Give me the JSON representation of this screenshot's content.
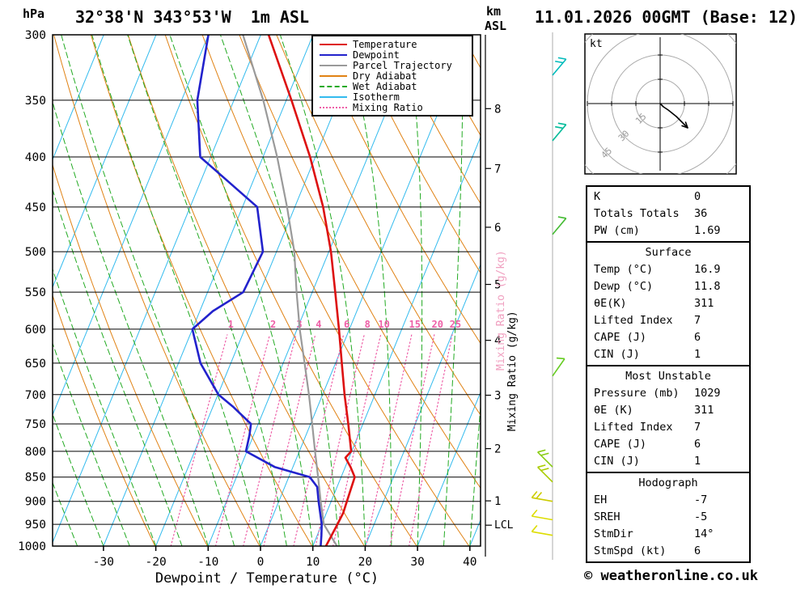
{
  "header": {
    "station": "32°38'N 343°53'W  1m ASL",
    "datetime": "11.01.2026 00GMT (Base: 12)"
  },
  "chart_data": {
    "type": "skewt_log_p_sounding",
    "axes": {
      "pressure_unit": "hPa",
      "altitude_unit": "km",
      "altitude_unit2": "ASL",
      "xlabel": "Dewpoint / Temperature (°C)",
      "mixing_label": "Mixing Ratio (g/kg)",
      "lcl_label": "LCL",
      "pressure_ticks_hpa": [
        300,
        350,
        400,
        450,
        500,
        550,
        600,
        650,
        700,
        750,
        800,
        850,
        900,
        950,
        1000
      ],
      "temp_ticks_c": [
        -30,
        -20,
        -10,
        0,
        10,
        20,
        30,
        40
      ],
      "km_ticks": [
        [
          1,
          899
        ],
        [
          2,
          795
        ],
        [
          3,
          701
        ],
        [
          4,
          616
        ],
        [
          5,
          540
        ],
        [
          6,
          472
        ],
        [
          7,
          411
        ],
        [
          8,
          357
        ]
      ],
      "lcl_pressure_hpa": 952,
      "mixing_ratio_lines_gkg": [
        1,
        2,
        3,
        4,
        6,
        8,
        10,
        15,
        20,
        25
      ]
    },
    "series": {
      "temperature_c_by_hpa": [
        [
          1000,
          12.5
        ],
        [
          950,
          13.0
        ],
        [
          925,
          13.2
        ],
        [
          900,
          13.0
        ],
        [
          850,
          12.6
        ],
        [
          830,
          11.0
        ],
        [
          812,
          9.3
        ],
        [
          800,
          9.9
        ],
        [
          750,
          7.2
        ],
        [
          700,
          4.2
        ],
        [
          650,
          1.2
        ],
        [
          600,
          -2.0
        ],
        [
          550,
          -5.6
        ],
        [
          500,
          -9.6
        ],
        [
          450,
          -14.6
        ],
        [
          400,
          -21.0
        ],
        [
          350,
          -29.0
        ],
        [
          300,
          -38.5
        ]
      ],
      "dewpoint_c_by_hpa": [
        [
          1000,
          11.5
        ],
        [
          975,
          10.8
        ],
        [
          950,
          10.0
        ],
        [
          900,
          7.6
        ],
        [
          870,
          6.2
        ],
        [
          850,
          4.0
        ],
        [
          830,
          -3.5
        ],
        [
          800,
          -10.2
        ],
        [
          770,
          -10.8
        ],
        [
          750,
          -11.4
        ],
        [
          720,
          -16.2
        ],
        [
          700,
          -19.9
        ],
        [
          650,
          -25.8
        ],
        [
          600,
          -30.0
        ],
        [
          575,
          -27.5
        ],
        [
          550,
          -23.2
        ],
        [
          500,
          -22.6
        ],
        [
          450,
          -27.2
        ],
        [
          400,
          -42.0
        ],
        [
          350,
          -47.0
        ],
        [
          300,
          -50.0
        ]
      ],
      "parcel_c_by_hpa": [
        [
          1000,
          14.6
        ],
        [
          950,
          10.4
        ],
        [
          900,
          8.0
        ],
        [
          850,
          5.6
        ],
        [
          800,
          3.0
        ],
        [
          750,
          0.3
        ],
        [
          700,
          -2.6
        ],
        [
          650,
          -5.9
        ],
        [
          600,
          -9.5
        ],
        [
          550,
          -13.0
        ],
        [
          500,
          -16.6
        ],
        [
          450,
          -21.5
        ],
        [
          400,
          -27.3
        ],
        [
          350,
          -34.4
        ],
        [
          300,
          -43.4
        ]
      ]
    },
    "wind_barbs": [
      {
        "p": 330,
        "color": "#00bbbb",
        "angle": -50,
        "ticks": 2
      },
      {
        "p": 385,
        "color": "#00bb99",
        "angle": -50,
        "ticks": 2
      },
      {
        "p": 480,
        "color": "#44bb33",
        "angle": -50,
        "ticks": 1
      },
      {
        "p": 670,
        "color": "#66cc22",
        "angle": -55,
        "ticks": 1
      },
      {
        "p": 830,
        "color": "#88cc11",
        "angle": -135,
        "ticks": 2
      },
      {
        "p": 860,
        "color": "#aacc00",
        "angle": -135,
        "ticks": 2
      },
      {
        "p": 900,
        "color": "#cccc00",
        "angle": -170,
        "ticks": 2
      },
      {
        "p": 940,
        "color": "#dddd00",
        "angle": -170,
        "ticks": 1
      },
      {
        "p": 975,
        "color": "#dddd00",
        "angle": -170,
        "ticks": 1
      }
    ],
    "colors": {
      "temperature": "#dd1111",
      "dewpoint": "#2222cc",
      "parcel": "#9a9a9a",
      "dry_adiabat": "#e08214",
      "wet_adiabat": "#22aa22",
      "isotherm": "#33bbee",
      "mixing_ratio": "#ee5fa7",
      "mixing_label_pink": "#f0a0c0"
    },
    "legend_items": [
      {
        "label": "Temperature",
        "color": "#dd1111",
        "style": "solid"
      },
      {
        "label": "Dewpoint",
        "color": "#2222cc",
        "style": "solid"
      },
      {
        "label": "Parcel Trajectory",
        "color": "#9a9a9a",
        "style": "solid"
      },
      {
        "label": "Dry Adiabat",
        "color": "#e08214",
        "style": "solid"
      },
      {
        "label": "Wet Adiabat",
        "color": "#22aa22",
        "style": "dashed"
      },
      {
        "label": "Isotherm",
        "color": "#33bbee",
        "style": "solid"
      },
      {
        "label": "Mixing Ratio",
        "color": "#ee5fa7",
        "style": "dotted"
      }
    ],
    "hodograph": {
      "unit_label": "kt",
      "ring_spacing_kt": 15,
      "ring_labels": [
        "15",
        "30",
        "45"
      ],
      "trace_kt": [
        [
          0,
          0
        ],
        [
          2,
          -2
        ],
        [
          5,
          -4
        ],
        [
          10,
          -8
        ],
        [
          17,
          -15
        ]
      ]
    }
  },
  "stats_sections": [
    {
      "title": "",
      "rows": [
        [
          "K",
          "0"
        ],
        [
          "Totals Totals",
          "36"
        ],
        [
          "PW (cm)",
          "1.69"
        ]
      ]
    },
    {
      "title": "Surface",
      "rows": [
        [
          "Temp (°C)",
          "16.9"
        ],
        [
          "Dewp (°C)",
          "11.8"
        ],
        [
          "θE(K)",
          "311"
        ],
        [
          "Lifted Index",
          "7"
        ],
        [
          "CAPE (J)",
          "6"
        ],
        [
          "CIN (J)",
          "1"
        ]
      ]
    },
    {
      "title": "Most Unstable",
      "rows": [
        [
          "Pressure (mb)",
          "1029"
        ],
        [
          "θE (K)",
          "311"
        ],
        [
          "Lifted Index",
          "7"
        ],
        [
          "CAPE (J)",
          "6"
        ],
        [
          "CIN (J)",
          "1"
        ]
      ]
    },
    {
      "title": "Hodograph",
      "rows": [
        [
          "EH",
          "-7"
        ],
        [
          "SREH",
          "-5"
        ],
        [
          "StmDir",
          "14°"
        ],
        [
          "StmSpd (kt)",
          "6"
        ]
      ]
    }
  ],
  "footer": {
    "copyright": "© weatheronline.co.uk"
  }
}
